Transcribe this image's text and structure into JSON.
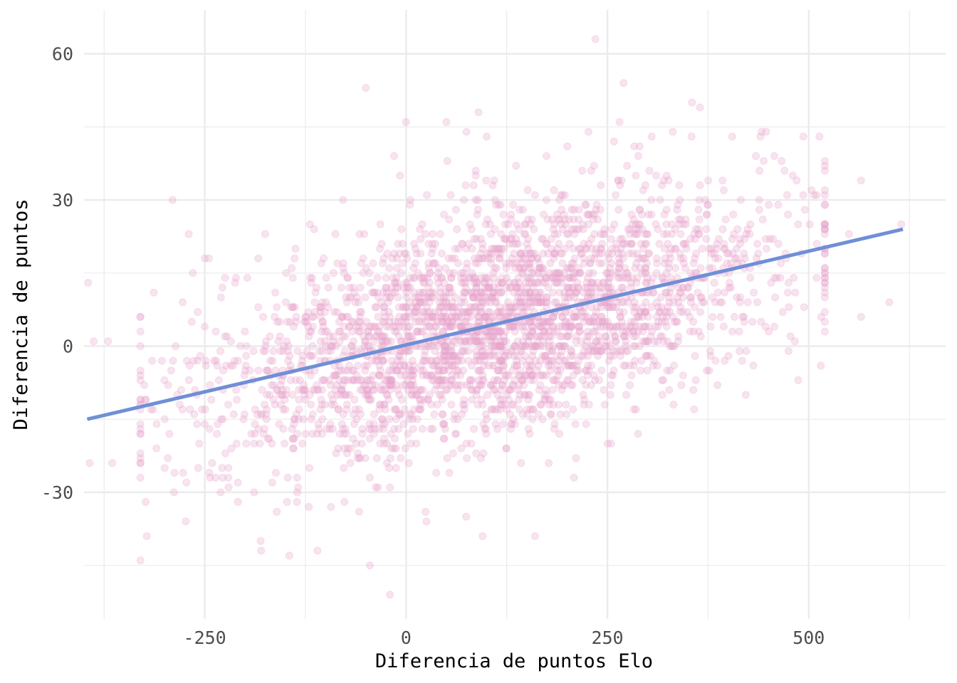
{
  "chart_data": {
    "type": "scatter",
    "title": "",
    "xlabel": "Diferencia de puntos Elo",
    "ylabel": "Diferencia de puntos",
    "xlim": [
      -400,
      670
    ],
    "ylim": [
      -56,
      69
    ],
    "x_ticks": [
      -250,
      0,
      250,
      500
    ],
    "x_tick_labels": [
      "-250",
      "0",
      "250",
      "500"
    ],
    "x_minor_ticks": [
      -375,
      -125,
      125,
      375,
      625
    ],
    "y_ticks": [
      -30,
      0,
      30,
      60
    ],
    "y_tick_labels": [
      "-30",
      "0",
      "30",
      "60"
    ],
    "y_minor_ticks": [
      -45,
      -15,
      15,
      45
    ],
    "grid": true,
    "legend": "none",
    "colors": {
      "points": "#e7a6cc",
      "trend_line": "#6f8fd6",
      "grid": "#ebebeb"
    },
    "point_opacity": 0.3,
    "trend_line": {
      "x": [
        -396,
        617
      ],
      "y": [
        -15.0,
        24.0
      ]
    },
    "generated_sample": {
      "count": 3000,
      "x_mean": 110,
      "x_sd": 175,
      "slope": 0.0385,
      "intercept": 0.3,
      "residual_sd": 11.5
    },
    "points": [
      [
        -395,
        13
      ],
      [
        -393,
        -24
      ],
      [
        -388,
        1
      ],
      [
        -365,
        -24
      ],
      [
        -330,
        -18
      ],
      [
        -322,
        -39
      ],
      [
        -290,
        30
      ],
      [
        -270,
        23
      ],
      [
        -265,
        15
      ],
      [
        -250,
        18
      ],
      [
        -245,
        18
      ],
      [
        -175,
        23
      ],
      [
        -180,
        -42
      ],
      [
        -145,
        -43
      ],
      [
        -110,
        -42
      ],
      [
        -50,
        53
      ],
      [
        -45,
        -45
      ],
      [
        -15,
        39
      ],
      [
        0,
        46
      ],
      [
        -20,
        -51
      ],
      [
        50,
        46
      ],
      [
        75,
        44
      ],
      [
        90,
        48
      ],
      [
        100,
        43
      ],
      [
        95,
        -39
      ],
      [
        160,
        -39
      ],
      [
        235,
        63
      ],
      [
        270,
        54
      ],
      [
        265,
        46
      ],
      [
        355,
        50
      ],
      [
        365,
        49
      ],
      [
        290,
        41
      ],
      [
        305,
        43
      ],
      [
        405,
        43
      ],
      [
        440,
        43
      ],
      [
        485,
        34
      ],
      [
        565,
        34
      ],
      [
        615,
        25
      ],
      [
        550,
        23
      ],
      [
        510,
        21
      ],
      [
        600,
        9
      ],
      [
        565,
        6
      ],
      [
        515,
        -4
      ],
      [
        -370,
        1
      ],
      [
        -20,
        -29
      ],
      [
        -35,
        -29
      ]
    ]
  }
}
